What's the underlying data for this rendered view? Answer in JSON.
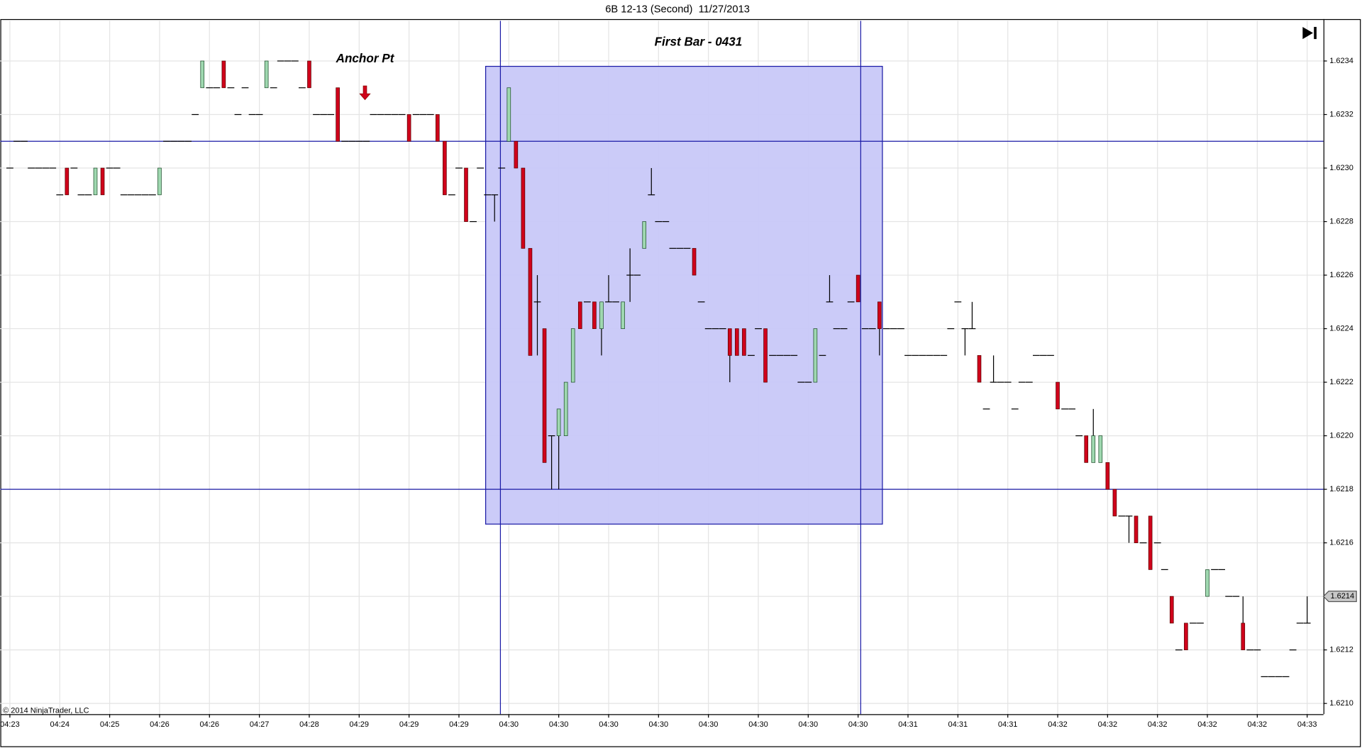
{
  "chart_data": {
    "type": "candlestick",
    "title": "6B 12-13 (Second)  11/27/2013",
    "annotations": [
      "Anchor Pt",
      "First Bar - 0431"
    ],
    "copyright": "© 2014 NinjaTrader, LLC",
    "time_labels": [
      "04:23",
      "04:24",
      "04:25",
      "04:26",
      "04:26",
      "04:27",
      "04:28",
      "04:29",
      "04:29",
      "04:29",
      "04:30",
      "04:30",
      "04:30",
      "04:30",
      "04:30",
      "04:30",
      "04:30",
      "04:30",
      "04:31",
      "04:31",
      "04:31",
      "04:32",
      "04:32",
      "04:32",
      "04:32",
      "04:32",
      "04:33"
    ],
    "ylim": [
      1.62096,
      1.62355
    ],
    "yticks": [
      {
        "value": 1.621,
        "label": "1.6210"
      },
      1.6212,
      1.6214,
      1.6216,
      1.6218,
      {
        "value": 1.622,
        "label": "1.6220"
      },
      1.6222,
      1.6224,
      1.6226,
      1.6228,
      {
        "value": 1.623,
        "label": "1.6230"
      },
      1.6232,
      1.6234
    ],
    "grid": true,
    "last_price": 1.6214,
    "horizontal_lines": [
      1.6231,
      1.6218
    ],
    "box_range": [
      1.62167,
      1.62338
    ],
    "up_color": "#9fd8b0",
    "down_color": "#d0021b",
    "line_color": "#1a1aa6",
    "box_color": "#c8c8f8",
    "ohlc": [
      [
        1.623,
        1.623,
        1.623,
        1.623
      ],
      [
        1.6231,
        1.6231,
        1.6231,
        1.6231
      ],
      [
        1.6231,
        1.6231,
        1.6231,
        1.6231
      ],
      [
        1.623,
        1.623,
        1.623,
        1.623
      ],
      [
        1.623,
        1.623,
        1.623,
        1.623
      ],
      [
        1.623,
        1.623,
        1.623,
        1.623
      ],
      [
        1.623,
        1.623,
        1.623,
        1.623
      ],
      [
        1.6229,
        1.6229,
        1.6229,
        1.6229
      ],
      [
        1.623,
        1.623,
        1.6229,
        1.6229
      ],
      [
        1.623,
        1.623,
        1.623,
        1.623
      ],
      [
        1.6229,
        1.6229,
        1.6229,
        1.6229
      ],
      [
        1.6229,
        1.6229,
        1.6229,
        1.6229
      ],
      [
        1.6229,
        1.623,
        1.6229,
        1.623
      ],
      [
        1.623,
        1.623,
        1.6229,
        1.6229
      ],
      [
        1.623,
        1.623,
        1.623,
        1.623
      ],
      [
        1.623,
        1.623,
        1.623,
        1.623
      ],
      [
        1.6229,
        1.6229,
        1.6229,
        1.6229
      ],
      [
        1.6229,
        1.6229,
        1.6229,
        1.6229
      ],
      [
        1.6229,
        1.6229,
        1.6229,
        1.6229
      ],
      [
        1.6229,
        1.6229,
        1.6229,
        1.6229
      ],
      [
        1.6229,
        1.6229,
        1.6229,
        1.6229
      ],
      [
        1.6229,
        1.623,
        1.6229,
        1.623
      ],
      [
        1.6231,
        1.6231,
        1.6231,
        1.6231
      ],
      [
        1.6231,
        1.6231,
        1.6231,
        1.6231
      ],
      [
        1.6231,
        1.6231,
        1.6231,
        1.6231
      ],
      [
        1.6231,
        1.6231,
        1.6231,
        1.6231
      ],
      [
        1.6232,
        1.6232,
        1.6232,
        1.6232
      ],
      [
        1.6233,
        1.6234,
        1.6233,
        1.6234
      ],
      [
        1.6233,
        1.6233,
        1.6233,
        1.6233
      ],
      [
        1.6233,
        1.6233,
        1.6233,
        1.6233
      ],
      [
        1.6234,
        1.6234,
        1.6233,
        1.6233
      ],
      [
        1.6233,
        1.6233,
        1.6233,
        1.6233
      ],
      [
        1.6232,
        1.6232,
        1.6232,
        1.6232
      ],
      [
        1.6233,
        1.6233,
        1.6233,
        1.6233
      ],
      [
        1.6232,
        1.6232,
        1.6232,
        1.6232
      ],
      [
        1.6232,
        1.6232,
        1.6232,
        1.6232
      ],
      [
        1.6233,
        1.6234,
        1.6233,
        1.6234
      ],
      [
        1.6233,
        1.6233,
        1.6233,
        1.6233
      ],
      [
        1.6234,
        1.6234,
        1.6234,
        1.6234
      ],
      [
        1.6234,
        1.6234,
        1.6234,
        1.6234
      ],
      [
        1.6234,
        1.6234,
        1.6234,
        1.6234
      ],
      [
        1.6233,
        1.6233,
        1.6233,
        1.6233
      ],
      [
        1.6234,
        1.6234,
        1.6233,
        1.6233
      ],
      [
        1.6232,
        1.6232,
        1.6232,
        1.6232
      ],
      [
        1.6232,
        1.6232,
        1.6232,
        1.6232
      ],
      [
        1.6232,
        1.6232,
        1.6232,
        1.6232
      ],
      [
        1.6233,
        1.6233,
        1.6231,
        1.6231
      ],
      [
        1.6231,
        1.6231,
        1.6231,
        1.6231
      ],
      [
        1.6231,
        1.6231,
        1.6231,
        1.6231
      ],
      [
        1.6231,
        1.6231,
        1.6231,
        1.6231
      ],
      [
        1.6231,
        1.6231,
        1.6231,
        1.6231
      ],
      [
        1.6232,
        1.6232,
        1.6232,
        1.6232
      ],
      [
        1.6232,
        1.6232,
        1.6232,
        1.6232
      ],
      [
        1.6232,
        1.6232,
        1.6232,
        1.6232
      ],
      [
        1.6232,
        1.6232,
        1.6232,
        1.6232
      ],
      [
        1.6232,
        1.6232,
        1.6232,
        1.6232
      ],
      [
        1.6232,
        1.6232,
        1.6231,
        1.6231
      ],
      [
        1.6232,
        1.6232,
        1.6232,
        1.6232
      ],
      [
        1.6232,
        1.6232,
        1.6232,
        1.6232
      ],
      [
        1.6232,
        1.6232,
        1.6232,
        1.6232
      ],
      [
        1.6232,
        1.6232,
        1.6231,
        1.6231
      ],
      [
        1.6231,
        1.6231,
        1.6229,
        1.6229
      ],
      [
        1.6229,
        1.6229,
        1.6229,
        1.6229
      ],
      [
        1.623,
        1.623,
        1.623,
        1.623
      ],
      [
        1.623,
        1.623,
        1.6228,
        1.6228
      ],
      [
        1.6228,
        1.6228,
        1.6228,
        1.6228
      ],
      [
        1.623,
        1.623,
        1.623,
        1.623
      ],
      [
        1.6229,
        1.6229,
        1.6229,
        1.6229
      ],
      [
        1.6229,
        1.6229,
        1.6228,
        1.6229
      ],
      [
        1.623,
        1.623,
        1.623,
        1.623
      ],
      [
        1.6231,
        1.6233,
        1.6231,
        1.6233
      ],
      [
        1.6231,
        1.6231,
        1.623,
        1.623
      ],
      [
        1.623,
        1.623,
        1.6227,
        1.6227
      ],
      [
        1.6227,
        1.6227,
        1.6223,
        1.6223
      ],
      [
        1.6225,
        1.6226,
        1.6223,
        1.6225
      ],
      [
        1.6224,
        1.6224,
        1.6219,
        1.6219
      ],
      [
        1.622,
        1.622,
        1.6218,
        1.622
      ],
      [
        1.622,
        1.6221,
        1.6218,
        1.6221
      ],
      [
        1.622,
        1.6222,
        1.622,
        1.6222
      ],
      [
        1.6222,
        1.6224,
        1.6222,
        1.6224
      ],
      [
        1.6225,
        1.6225,
        1.6224,
        1.6224
      ],
      [
        1.6225,
        1.6225,
        1.6225,
        1.6225
      ],
      [
        1.6225,
        1.6225,
        1.6224,
        1.6224
      ],
      [
        1.6224,
        1.6225,
        1.6223,
        1.6225
      ],
      [
        1.6225,
        1.6226,
        1.6225,
        1.6225
      ],
      [
        1.6225,
        1.6225,
        1.6225,
        1.6225
      ],
      [
        1.6224,
        1.6225,
        1.6224,
        1.6225
      ],
      [
        1.6226,
        1.6227,
        1.6225,
        1.6226
      ],
      [
        1.6226,
        1.6226,
        1.6226,
        1.6226
      ],
      [
        1.6227,
        1.6228,
        1.6227,
        1.6228
      ],
      [
        1.6229,
        1.623,
        1.6229,
        1.6229
      ],
      [
        1.6228,
        1.6228,
        1.6228,
        1.6228
      ],
      [
        1.6228,
        1.6228,
        1.6228,
        1.6228
      ],
      [
        1.6227,
        1.6227,
        1.6227,
        1.6227
      ],
      [
        1.6227,
        1.6227,
        1.6227,
        1.6227
      ],
      [
        1.6227,
        1.6227,
        1.6227,
        1.6227
      ],
      [
        1.6227,
        1.6227,
        1.6226,
        1.6226
      ],
      [
        1.6225,
        1.6225,
        1.6225,
        1.6225
      ],
      [
        1.6224,
        1.6224,
        1.6224,
        1.6224
      ],
      [
        1.6224,
        1.6224,
        1.6224,
        1.6224
      ],
      [
        1.6224,
        1.6224,
        1.6224,
        1.6224
      ],
      [
        1.6224,
        1.6224,
        1.6222,
        1.6223
      ],
      [
        1.6224,
        1.6224,
        1.6223,
        1.6223
      ],
      [
        1.6224,
        1.6224,
        1.6223,
        1.6223
      ],
      [
        1.6223,
        1.6223,
        1.6223,
        1.6223
      ],
      [
        1.6224,
        1.6224,
        1.6224,
        1.6224
      ],
      [
        1.6224,
        1.6224,
        1.6222,
        1.6222
      ],
      [
        1.6223,
        1.6223,
        1.6223,
        1.6223
      ],
      [
        1.6223,
        1.6223,
        1.6223,
        1.6223
      ],
      [
        1.6223,
        1.6223,
        1.6223,
        1.6223
      ],
      [
        1.6223,
        1.6223,
        1.6223,
        1.6223
      ],
      [
        1.6222,
        1.6222,
        1.6222,
        1.6222
      ],
      [
        1.6222,
        1.6222,
        1.6222,
        1.6222
      ],
      [
        1.6222,
        1.6224,
        1.6222,
        1.6224
      ],
      [
        1.6223,
        1.6223,
        1.6223,
        1.6223
      ],
      [
        1.6225,
        1.6226,
        1.6225,
        1.6225
      ],
      [
        1.6224,
        1.6224,
        1.6224,
        1.6224
      ],
      [
        1.6224,
        1.6224,
        1.6224,
        1.6224
      ],
      [
        1.6225,
        1.6225,
        1.6225,
        1.6225
      ],
      [
        1.6226,
        1.6226,
        1.6225,
        1.6225
      ],
      [
        1.6224,
        1.6224,
        1.6224,
        1.6224
      ],
      [
        1.6224,
        1.6224,
        1.6224,
        1.6224
      ],
      [
        1.6225,
        1.6225,
        1.6223,
        1.6224
      ],
      [
        1.6224,
        1.6224,
        1.6224,
        1.6224
      ],
      [
        1.6224,
        1.6224,
        1.6224,
        1.6224
      ],
      [
        1.6224,
        1.6224,
        1.6224,
        1.6224
      ],
      [
        1.6223,
        1.6223,
        1.6223,
        1.6223
      ],
      [
        1.6223,
        1.6223,
        1.6223,
        1.6223
      ],
      [
        1.6223,
        1.6223,
        1.6223,
        1.6223
      ],
      [
        1.6223,
        1.6223,
        1.6223,
        1.6223
      ],
      [
        1.6223,
        1.6223,
        1.6223,
        1.6223
      ],
      [
        1.6223,
        1.6223,
        1.6223,
        1.6223
      ],
      [
        1.6224,
        1.6224,
        1.6224,
        1.6224
      ],
      [
        1.6225,
        1.6225,
        1.6225,
        1.6225
      ],
      [
        1.6224,
        1.6224,
        1.6223,
        1.6224
      ],
      [
        1.6224,
        1.6225,
        1.6224,
        1.6224
      ],
      [
        1.6223,
        1.6223,
        1.6222,
        1.6222
      ],
      [
        1.6221,
        1.6221,
        1.6221,
        1.6221
      ],
      [
        1.6222,
        1.6223,
        1.6222,
        1.6222
      ],
      [
        1.6222,
        1.6222,
        1.6222,
        1.6222
      ],
      [
        1.6222,
        1.6222,
        1.6222,
        1.6222
      ],
      [
        1.6221,
        1.6221,
        1.6221,
        1.6221
      ],
      [
        1.6222,
        1.6222,
        1.6222,
        1.6222
      ],
      [
        1.6222,
        1.6222,
        1.6222,
        1.6222
      ],
      [
        1.6223,
        1.6223,
        1.6223,
        1.6223
      ],
      [
        1.6223,
        1.6223,
        1.6223,
        1.6223
      ],
      [
        1.6223,
        1.6223,
        1.6223,
        1.6223
      ],
      [
        1.6222,
        1.6222,
        1.6221,
        1.6221
      ],
      [
        1.6221,
        1.6221,
        1.6221,
        1.6221
      ],
      [
        1.6221,
        1.6221,
        1.6221,
        1.6221
      ],
      [
        1.622,
        1.622,
        1.622,
        1.622
      ],
      [
        1.622,
        1.622,
        1.6219,
        1.6219
      ],
      [
        1.6219,
        1.6221,
        1.6219,
        1.622
      ],
      [
        1.6219,
        1.622,
        1.6219,
        1.622
      ],
      [
        1.6219,
        1.6219,
        1.6218,
        1.6218
      ],
      [
        1.6218,
        1.6218,
        1.6217,
        1.6217
      ],
      [
        1.6217,
        1.6217,
        1.6217,
        1.6217
      ],
      [
        1.6217,
        1.6217,
        1.6216,
        1.6217
      ],
      [
        1.6217,
        1.6217,
        1.6216,
        1.6216
      ],
      [
        1.6216,
        1.6216,
        1.6216,
        1.6216
      ],
      [
        1.6217,
        1.6217,
        1.6215,
        1.6215
      ],
      [
        1.6216,
        1.6216,
        1.6216,
        1.6216
      ],
      [
        1.6215,
        1.6215,
        1.6215,
        1.6215
      ],
      [
        1.6214,
        1.6214,
        1.6213,
        1.6213
      ],
      [
        1.6212,
        1.6212,
        1.6212,
        1.6212
      ],
      [
        1.6213,
        1.6213,
        1.6212,
        1.6212
      ],
      [
        1.6213,
        1.6213,
        1.6213,
        1.6213
      ],
      [
        1.6213,
        1.6213,
        1.6213,
        1.6213
      ],
      [
        1.6214,
        1.6215,
        1.6214,
        1.6215
      ],
      [
        1.6215,
        1.6215,
        1.6215,
        1.6215
      ],
      [
        1.6215,
        1.6215,
        1.6215,
        1.6215
      ],
      [
        1.6214,
        1.6214,
        1.6214,
        1.6214
      ],
      [
        1.6214,
        1.6214,
        1.6214,
        1.6214
      ],
      [
        1.6213,
        1.6214,
        1.6212,
        1.6212
      ],
      [
        1.6212,
        1.6212,
        1.6212,
        1.6212
      ],
      [
        1.6212,
        1.6212,
        1.6212,
        1.6212
      ],
      [
        1.6211,
        1.6211,
        1.6211,
        1.6211
      ],
      [
        1.6211,
        1.6211,
        1.6211,
        1.6211
      ],
      [
        1.6211,
        1.6211,
        1.6211,
        1.6211
      ],
      [
        1.6211,
        1.6211,
        1.6211,
        1.6211
      ],
      [
        1.6212,
        1.6212,
        1.6212,
        1.6212
      ],
      [
        1.6213,
        1.6213,
        1.6213,
        1.6213
      ],
      [
        1.6213,
        1.6214,
        1.6213,
        1.6213
      ]
    ]
  }
}
